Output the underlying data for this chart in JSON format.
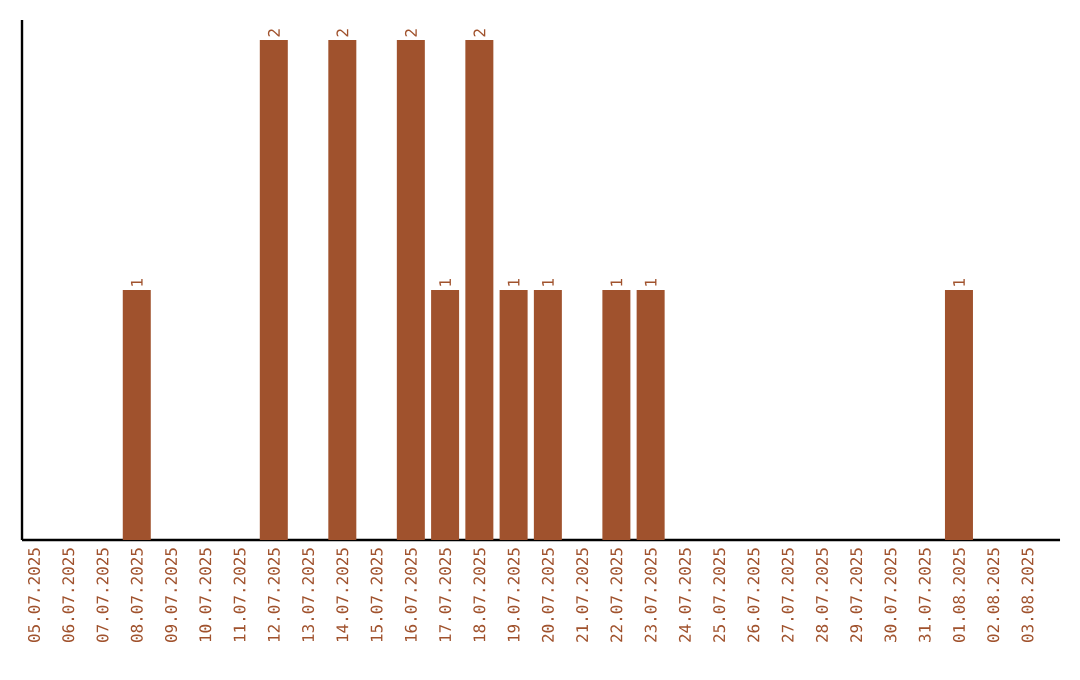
{
  "chart_data": {
    "type": "bar",
    "categories": [
      "05.07.2025",
      "06.07.2025",
      "07.07.2025",
      "08.07.2025",
      "09.07.2025",
      "10.07.2025",
      "11.07.2025",
      "12.07.2025",
      "13.07.2025",
      "14.07.2025",
      "15.07.2025",
      "16.07.2025",
      "17.07.2025",
      "18.07.2025",
      "19.07.2025",
      "20.07.2025",
      "21.07.2025",
      "22.07.2025",
      "23.07.2025",
      "24.07.2025",
      "25.07.2025",
      "26.07.2025",
      "27.07.2025",
      "28.07.2025",
      "29.07.2025",
      "30.07.2025",
      "31.07.2025",
      "01.08.2025",
      "02.08.2025",
      "03.08.2025"
    ],
    "values": [
      0,
      0,
      0,
      1,
      0,
      0,
      0,
      2,
      0,
      2,
      0,
      2,
      1,
      2,
      1,
      1,
      0,
      1,
      1,
      0,
      0,
      0,
      0,
      0,
      0,
      0,
      0,
      1,
      0,
      0
    ],
    "value_labels": [
      null,
      null,
      null,
      "1",
      null,
      null,
      null,
      "2",
      null,
      "2",
      null,
      "2",
      "1",
      "2",
      "1",
      "1",
      null,
      "1",
      "1",
      null,
      null,
      null,
      null,
      null,
      null,
      null,
      null,
      "1",
      null,
      null
    ],
    "color": "#a0522d",
    "tick_labels": "x",
    "grid": false
  }
}
